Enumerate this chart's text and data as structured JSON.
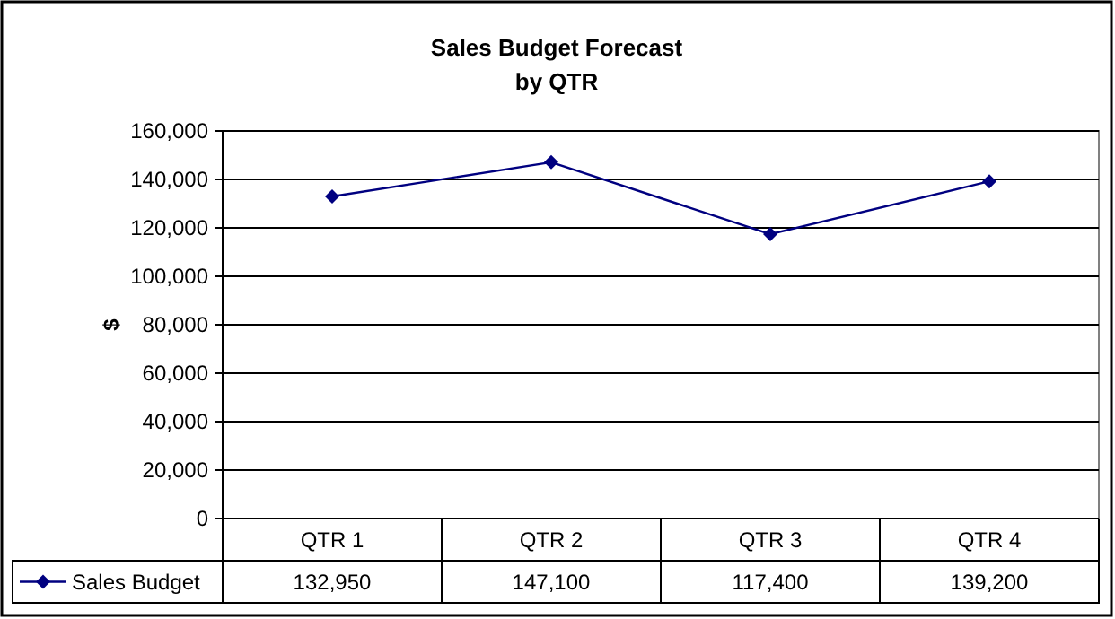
{
  "chart_data": {
    "type": "line",
    "title": "Sales Budget Forecast\nby QTR",
    "ylabel": "$",
    "categories": [
      "QTR 1",
      "QTR 2",
      "QTR 3",
      "QTR 4"
    ],
    "series": [
      {
        "name": "Sales Budget",
        "color": "#000080",
        "values": [
          132950,
          147100,
          117400,
          139200
        ],
        "value_labels": [
          "132,950",
          "147,100",
          "117,400",
          "139,200"
        ]
      }
    ],
    "ylim": [
      0,
      160000
    ],
    "yticks": [
      {
        "value": 0,
        "label": "0"
      },
      {
        "value": 20000,
        "label": "20,000"
      },
      {
        "value": 40000,
        "label": "40,000"
      },
      {
        "value": 60000,
        "label": "60,000"
      },
      {
        "value": 80000,
        "label": "80,000"
      },
      {
        "value": 100000,
        "label": "100,000"
      },
      {
        "value": 120000,
        "label": "120,000"
      },
      {
        "value": 140000,
        "label": "140,000"
      },
      {
        "value": 160000,
        "label": "160,000"
      }
    ],
    "grid": "y",
    "legend": "bottom left",
    "marker": "diamond",
    "line_style": "solid"
  }
}
